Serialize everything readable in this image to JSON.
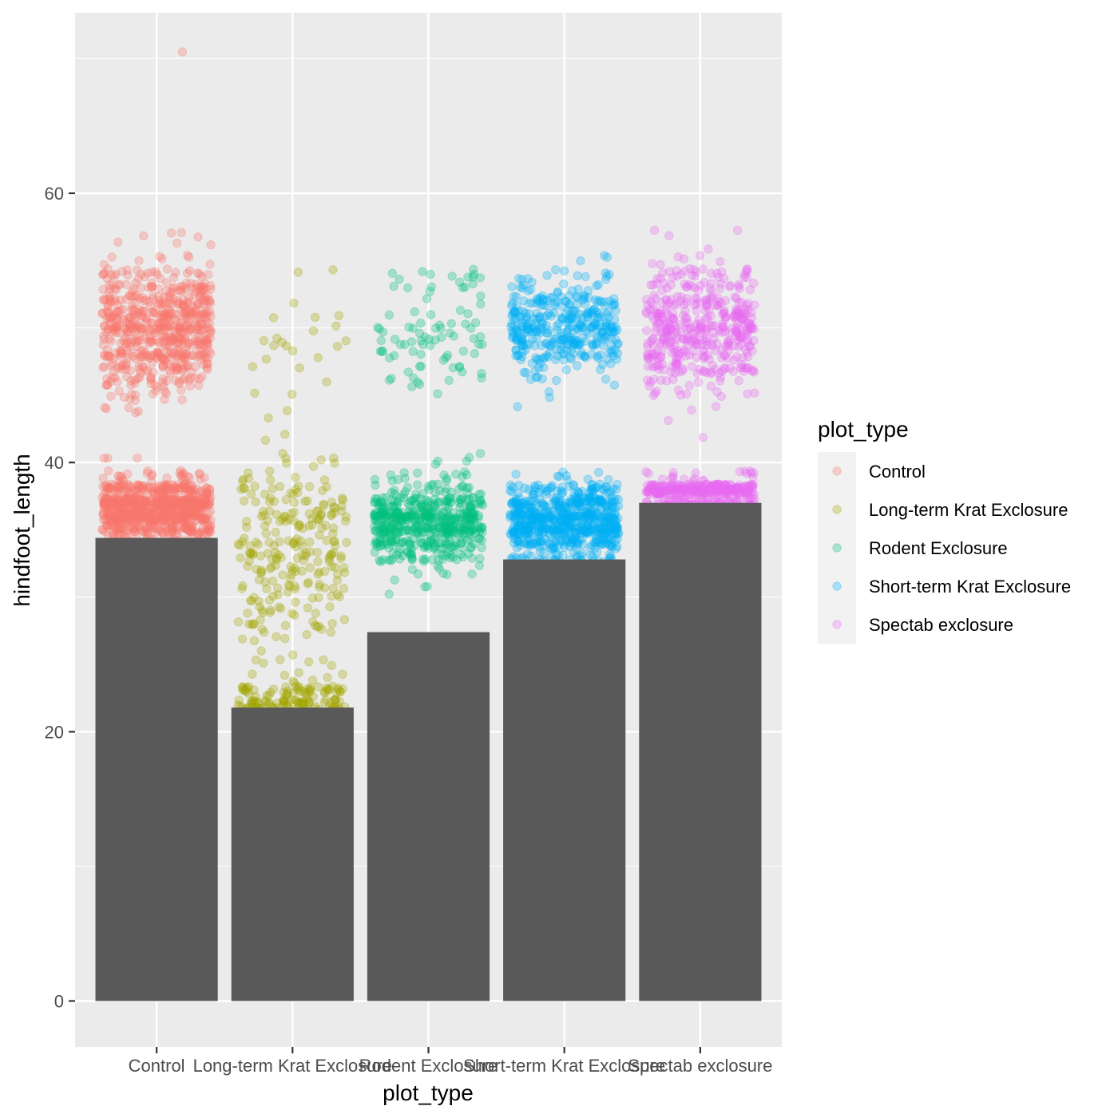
{
  "chart_data": {
    "type": "bar",
    "overlay": "jitter-scatter",
    "title": "",
    "xlabel": "plot_type",
    "ylabel": "hindfoot_length",
    "ylim": [
      -3.2,
      70.5
    ],
    "y_ticks": [
      0,
      20,
      40,
      60
    ],
    "y_tick_labels": [
      "0",
      "20",
      "40",
      "60"
    ],
    "grid": true,
    "legend_position": "right",
    "legend_title": "plot_type",
    "categories": [
      "Control",
      "Long-term Krat Exclosure",
      "Rodent Exclosure",
      "Short-term Krat Exclosure",
      "Spectab exclosure"
    ],
    "values": [
      34.4,
      21.8,
      27.4,
      32.8,
      37.0
    ],
    "bar_color": "#595959",
    "series": [
      {
        "name": "Control",
        "color": "#F8766D",
        "count": 1500,
        "clusters": [
          {
            "center": 50,
            "spread": 2.4,
            "share": 0.42
          },
          {
            "center": 36.5,
            "spread": 1.2,
            "share": 0.58
          }
        ],
        "min": 34.4,
        "max": 58
      },
      {
        "name": "Long-term Krat Exclosure",
        "color": "#A3A500",
        "count": 420,
        "clusters": [
          {
            "center": 50,
            "spread": 3,
            "share": 0.06
          },
          {
            "center": 34,
            "spread": 3,
            "share": 0.52
          },
          {
            "center": 22.3,
            "spread": 0.6,
            "share": 0.3
          },
          {
            "center": 26.5,
            "spread": 2.5,
            "share": 0.12
          }
        ],
        "min": 21.8,
        "max": 54
      },
      {
        "name": "Rodent Exclosure",
        "color": "#00BF7D",
        "count": 620,
        "clusters": [
          {
            "center": 50,
            "spread": 2.3,
            "share": 0.14
          },
          {
            "center": 35.5,
            "spread": 1.6,
            "share": 0.86
          }
        ],
        "min": 27.4,
        "max": 54
      },
      {
        "name": "Short-term Krat Exclosure",
        "color": "#00B0F6",
        "count": 1050,
        "clusters": [
          {
            "center": 50,
            "spread": 2.0,
            "share": 0.35
          },
          {
            "center": 35.7,
            "spread": 1.4,
            "share": 0.65
          }
        ],
        "min": 32.8,
        "max": 54.5
      },
      {
        "name": "Spectab exclosure",
        "color": "#E76BF3",
        "count": 800,
        "clusters": [
          {
            "center": 50,
            "spread": 2.3,
            "share": 0.55
          },
          {
            "center": 37.8,
            "spread": 0.5,
            "share": 0.45
          }
        ],
        "min": 37.0,
        "max": 56.5
      }
    ],
    "outlier_points": [
      {
        "category": "Control",
        "y": 70.5
      }
    ]
  }
}
